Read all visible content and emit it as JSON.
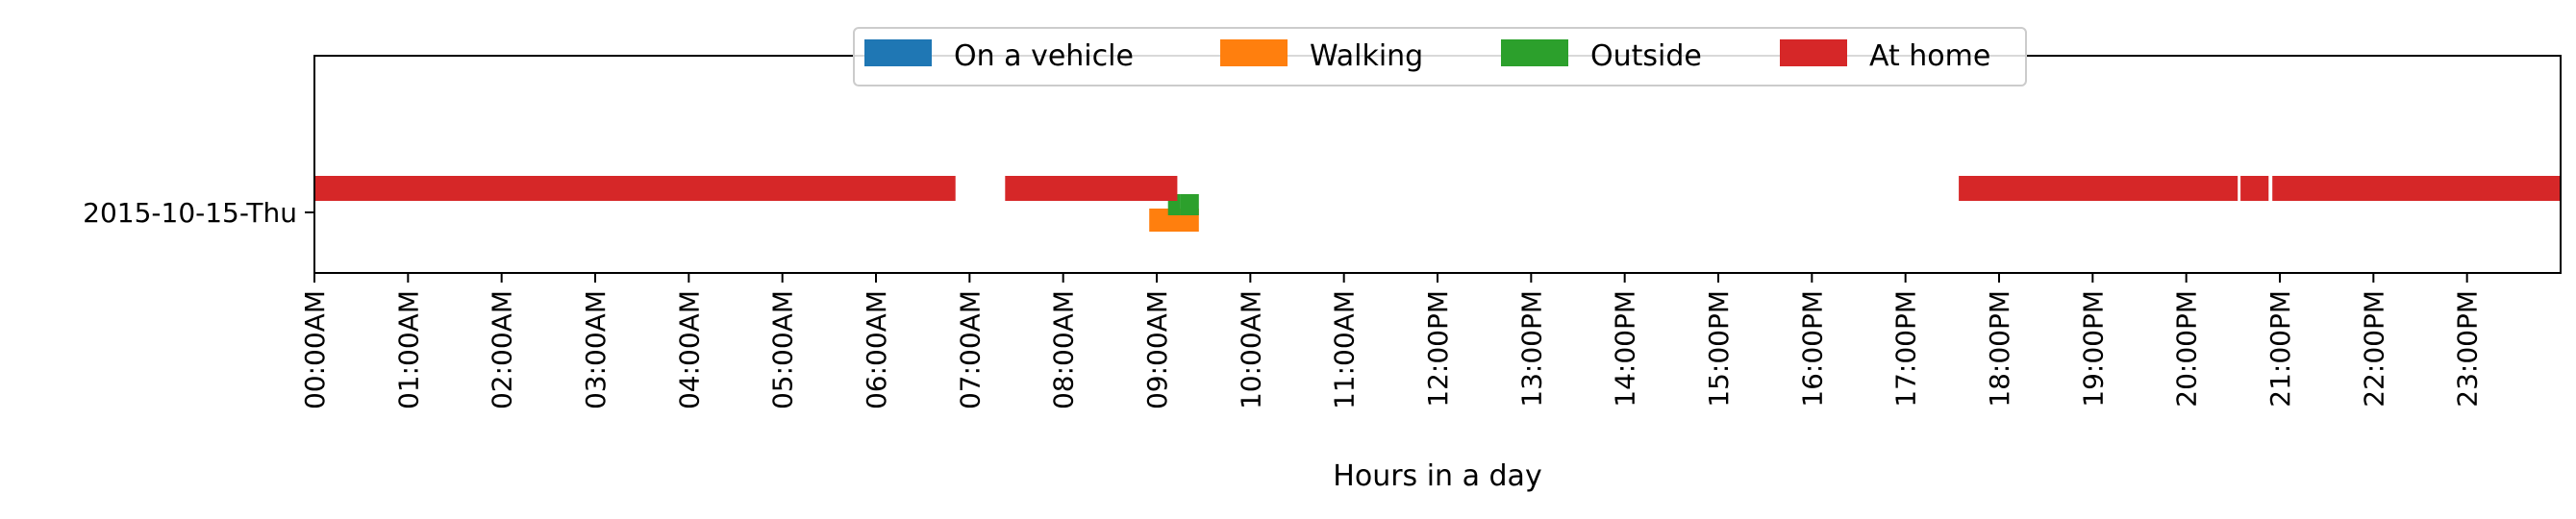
{
  "chart_data": {
    "type": "timeline",
    "xlabel": "Hours in a day",
    "xlim": [
      0,
      24
    ],
    "x_ticks": [
      "00:00AM",
      "01:00AM",
      "02:00AM",
      "03:00AM",
      "04:00AM",
      "05:00AM",
      "06:00AM",
      "07:00AM",
      "08:00AM",
      "09:00AM",
      "10:00AM",
      "11:00AM",
      "12:00PM",
      "13:00PM",
      "14:00PM",
      "15:00PM",
      "16:00PM",
      "17:00PM",
      "18:00PM",
      "19:00PM",
      "20:00PM",
      "21:00PM",
      "22:00PM",
      "23:00PM"
    ],
    "y_category": "2015-10-15-Thu",
    "legend_position": "top-center",
    "legend": [
      {
        "name": "On a vehicle",
        "color": "#1f77b4"
      },
      {
        "name": "Walking",
        "color": "#ff7f0e"
      },
      {
        "name": "Outside",
        "color": "#2ca02c"
      },
      {
        "name": "At home",
        "color": "#d62728"
      }
    ],
    "series": [
      {
        "name": "On a vehicle",
        "color": "#1f77b4",
        "intervals": []
      },
      {
        "name": "Walking",
        "color": "#ff7f0e",
        "intervals": [
          [
            8.92,
            9.45
          ]
        ]
      },
      {
        "name": "Outside",
        "color": "#2ca02c",
        "intervals": [
          [
            9.12,
            9.25
          ],
          [
            9.25,
            9.45
          ]
        ]
      },
      {
        "name": "At home",
        "color": "#d62728",
        "intervals": [
          [
            0.0,
            6.85
          ],
          [
            7.38,
            9.22
          ],
          [
            17.57,
            20.55
          ],
          [
            20.58,
            20.88
          ],
          [
            20.92,
            24.0
          ]
        ]
      }
    ]
  }
}
